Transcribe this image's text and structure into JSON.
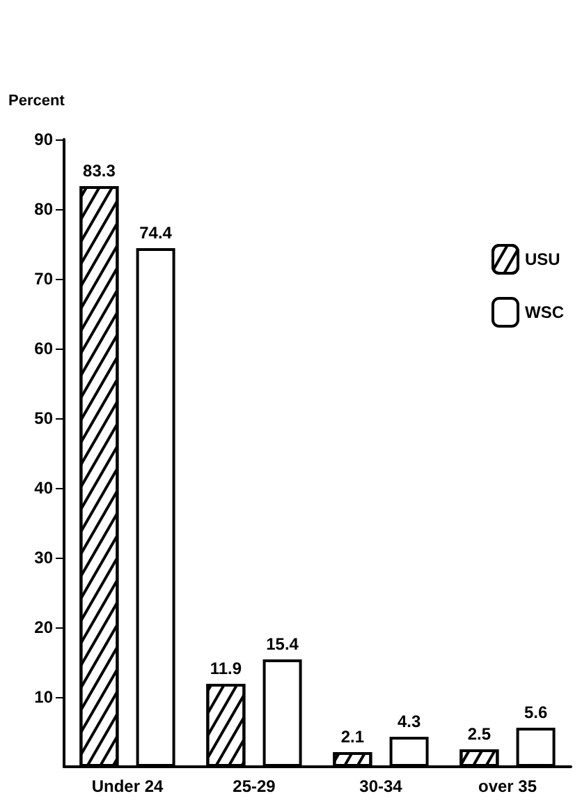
{
  "chart_data": {
    "type": "bar",
    "ylabel": "Percent",
    "categories": [
      "Under 24",
      "25-29",
      "30-34",
      "over 35"
    ],
    "series": [
      {
        "name": "USU",
        "color": "#ffffff",
        "values": [
          83.3,
          11.9,
          2.1,
          2.5
        ]
      },
      {
        "name": "WSC",
        "color": "#ffffff",
        "values": [
          74.4,
          15.4,
          4.3,
          5.6
        ]
      }
    ],
    "ylim": [
      0,
      90
    ],
    "yticks": [
      10,
      20,
      30,
      40,
      50,
      60,
      70,
      80,
      90
    ],
    "data_labels": true,
    "legend": "right",
    "grid": false
  }
}
